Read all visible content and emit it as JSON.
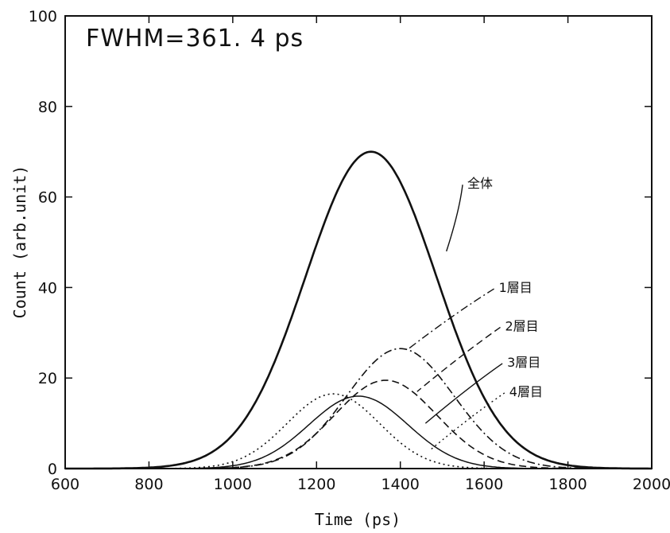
{
  "chart_data": {
    "type": "line",
    "title": "",
    "annotation": "FWHM=361. 4 ps",
    "xlabel": "Time (ps)",
    "ylabel": "Count (arb.unit)",
    "xlim": [
      600,
      2000
    ],
    "ylim": [
      0,
      100
    ],
    "x_ticks": [
      "600",
      "800",
      "1000",
      "1200",
      "1400",
      "1600",
      "1800",
      "2000"
    ],
    "y_ticks": [
      "0",
      "20",
      "40",
      "60",
      "80",
      "100"
    ],
    "grid": false,
    "legend": "none",
    "series": [
      {
        "name": "全体",
        "style": "solid-thick",
        "peak_x": 1330,
        "peak_y": 70.0,
        "sigma": 156,
        "label_at": [
          1560,
          62
        ],
        "leader_to": [
          1510,
          48
        ]
      },
      {
        "name": "1層目",
        "style": "dash-dot",
        "peak_x": 1400,
        "peak_y": 26.5,
        "sigma": 128,
        "label_at": [
          1635,
          39
        ],
        "leader_to": [
          1420,
          26.5
        ]
      },
      {
        "name": "2層目",
        "style": "dashed",
        "peak_x": 1365,
        "peak_y": 19.5,
        "sigma": 122,
        "label_at": [
          1650,
          30.5
        ],
        "leader_to": [
          1440,
          17
        ]
      },
      {
        "name": "3層目",
        "style": "solid-thin",
        "peak_x": 1300,
        "peak_y": 16.0,
        "sigma": 118,
        "label_at": [
          1655,
          22.5
        ],
        "leader_to": [
          1460,
          10
        ]
      },
      {
        "name": "4層目",
        "style": "dotted",
        "peak_x": 1240,
        "peak_y": 16.5,
        "sigma": 110,
        "label_at": [
          1660,
          16
        ],
        "leader_to": [
          1470,
          4
        ]
      }
    ]
  }
}
